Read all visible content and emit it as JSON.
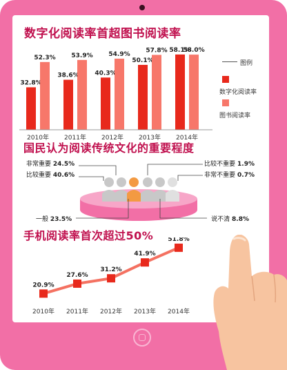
{
  "colors": {
    "frame": "#f26fa6",
    "title": "#c0104e",
    "digital": "#e8291c",
    "book": "#f7776a",
    "line": "#f47161",
    "marker": "#e8291c",
    "podium": "#f26fa6",
    "people_gray": "#c8c8c8",
    "people_orange": "#f39a42"
  },
  "chart1": {
    "title": "数字化阅读率首超图书阅读率",
    "legend_title": "图例",
    "legend": [
      "数字化阅读率",
      "图书阅读率"
    ]
  },
  "chart2": {
    "title": "国民认为阅读传统文化的重要程度",
    "segments": [
      {
        "label": "非常重要",
        "value": "24.5%"
      },
      {
        "label": "比较重要",
        "value": "40.6%"
      },
      {
        "label": "一般",
        "value": "23.5%"
      },
      {
        "label": "比较不重要",
        "value": "1.9%"
      },
      {
        "label": "非常不重要",
        "value": "0.7%"
      },
      {
        "label": "说不清",
        "value": "8.8%"
      }
    ]
  },
  "chart3": {
    "title": "手机阅读率首次超过50%"
  },
  "chart_data": [
    {
      "type": "bar",
      "title": "数字化阅读率首超图书阅读率",
      "categories": [
        "2010年",
        "2011年",
        "2012年",
        "2013年",
        "2014年"
      ],
      "series": [
        {
          "name": "数字化阅读率",
          "values": [
            32.8,
            38.6,
            40.3,
            50.1,
            58.1
          ],
          "labels": [
            "32.8%",
            "38.6%",
            "40.3%",
            "50.1%",
            "58.1%"
          ]
        },
        {
          "name": "图书阅读率",
          "values": [
            52.3,
            53.9,
            54.9,
            57.8,
            58.0
          ],
          "labels": [
            "52.3%",
            "53.9%",
            "54.9%",
            "57.8%",
            "58.0%"
          ]
        }
      ],
      "ylim": [
        0,
        65
      ],
      "grid": false,
      "legend": "right"
    },
    {
      "type": "pie",
      "title": "国民认为阅读传统文化的重要程度",
      "categories": [
        "非常重要",
        "比较重要",
        "一般",
        "比较不重要",
        "非常不重要",
        "说不清"
      ],
      "values": [
        24.5,
        40.6,
        23.5,
        1.9,
        0.7,
        8.8
      ]
    },
    {
      "type": "line",
      "title": "手机阅读率首次超过50%",
      "categories": [
        "2010年",
        "2011年",
        "2012年",
        "2013年",
        "2014年"
      ],
      "values": [
        20.9,
        27.6,
        31.2,
        41.9,
        51.8
      ],
      "labels": [
        "20.9%",
        "27.6%",
        "31.2%",
        "41.9%",
        "51.8%"
      ],
      "ylim": [
        15,
        55
      ],
      "grid": false
    }
  ]
}
